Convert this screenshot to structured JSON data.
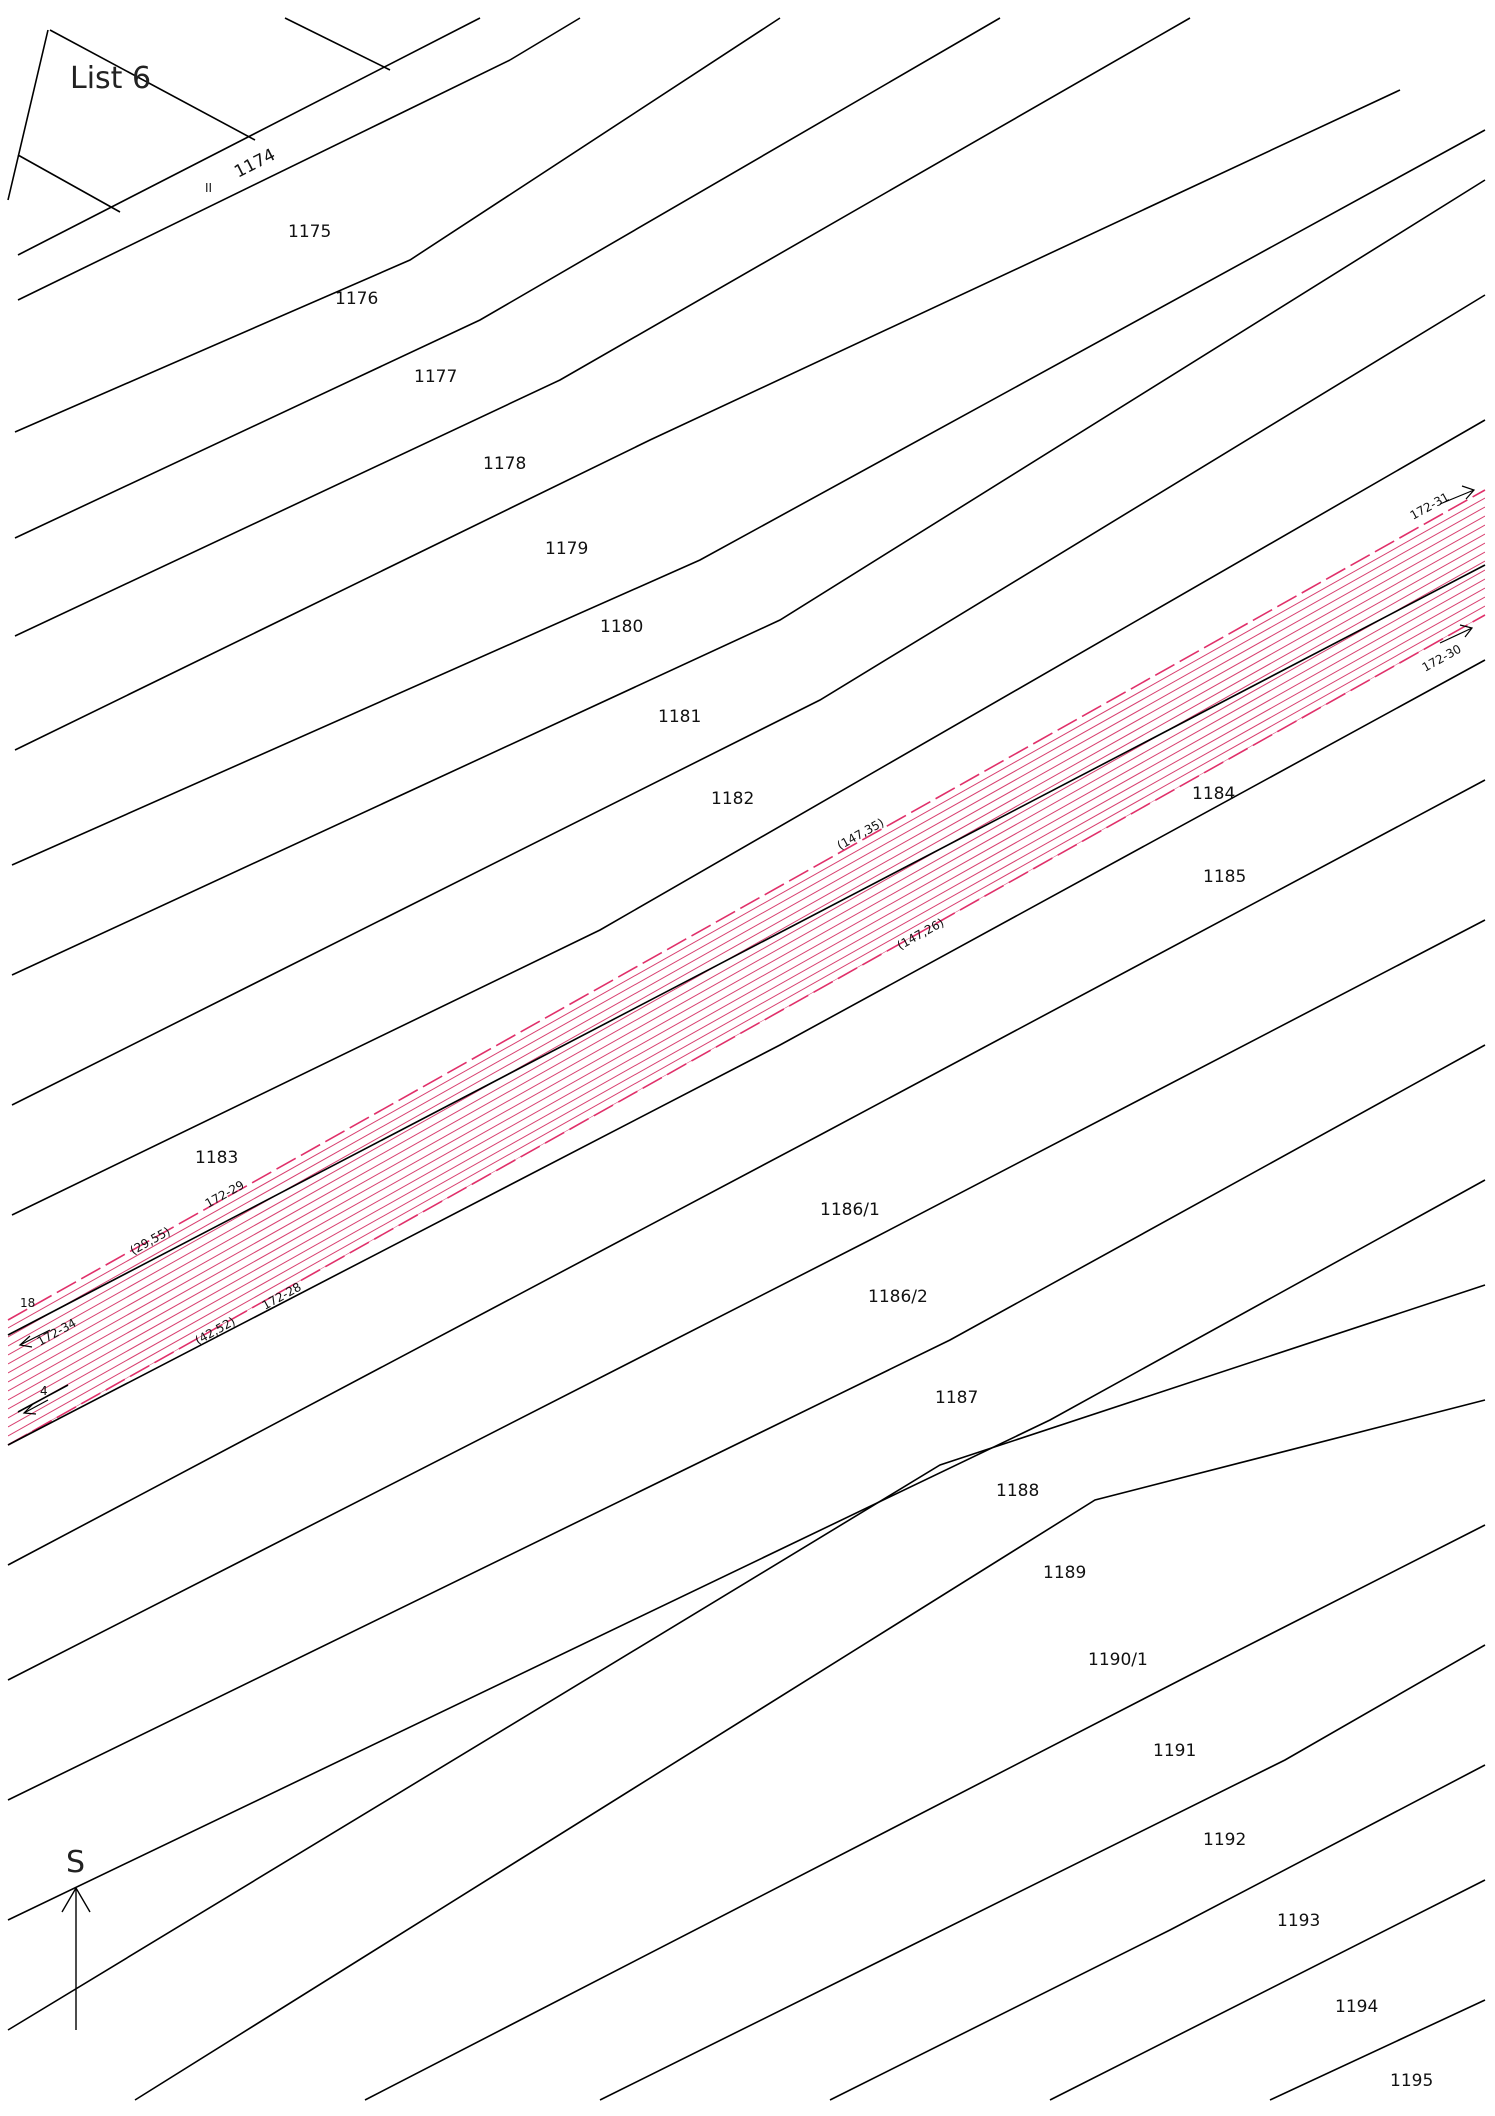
{
  "sheet": {
    "title": "List 6",
    "north_label": "S"
  },
  "colors": {
    "boundary": "#000000",
    "easement": "#e0306a",
    "hatch": "#d84070"
  },
  "parcels": [
    "1174",
    "1175",
    "1176",
    "1177",
    "1178",
    "1179",
    "1180",
    "1181",
    "1182",
    "1183",
    "1184",
    "1185",
    "1186/1",
    "1186/2",
    "1187",
    "1188",
    "1189",
    "1190/1",
    "1191",
    "1192",
    "1193",
    "1194",
    "1195"
  ],
  "parcel_mark": "II",
  "annotations": {
    "top_right_up": "172-31",
    "top_right_down": "172-30",
    "left_upper": "172-29",
    "left_lower": "172-28",
    "left_arrow": "172-34",
    "dim_upper_right": "(147,35)",
    "dim_lower_right": "(147,26)",
    "dim_upper_left": "(29,55)",
    "dim_lower_left": "(42,52)",
    "corner_18": "18",
    "corner_4": "4"
  }
}
